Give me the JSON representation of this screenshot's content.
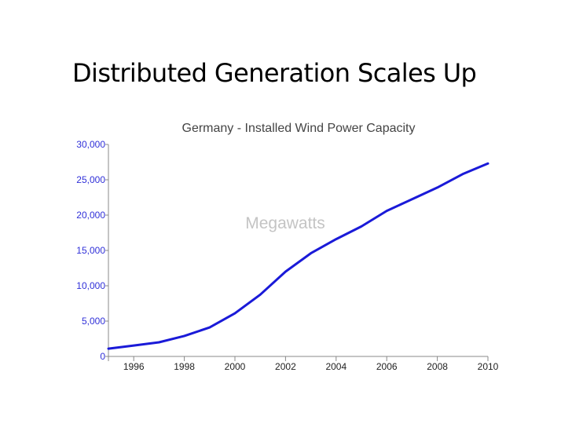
{
  "slide": {
    "title": "Distributed Generation Scales Up"
  },
  "chart_data": {
    "type": "line",
    "title": "Germany - Installed Wind Power Capacity",
    "units_label": "Megawatts",
    "xlabel": "",
    "ylabel": "",
    "x": [
      1995,
      1996,
      1997,
      1998,
      1999,
      2000,
      2001,
      2002,
      2003,
      2004,
      2005,
      2006,
      2007,
      2008,
      2009,
      2010
    ],
    "series": [
      {
        "values": [
          1100,
          1550,
          2000,
          2900,
          4100,
          6100,
          8750,
          12000,
          14600,
          16600,
          18400,
          20600,
          22250,
          23900,
          25800,
          27300
        ],
        "color": "#1a1ad8"
      }
    ],
    "xlim": [
      1995,
      2010
    ],
    "ylim": [
      0,
      30000
    ],
    "x_ticks": [
      "1996",
      "1998",
      "2000",
      "2002",
      "2004",
      "2006",
      "2008",
      "2010"
    ],
    "y_ticks": [
      "0",
      "5,000",
      "10,000",
      "15,000",
      "20,000",
      "25,000",
      "30,000"
    ],
    "y_tick_color": "#2f2fd8",
    "grid": false,
    "legend": "none"
  }
}
